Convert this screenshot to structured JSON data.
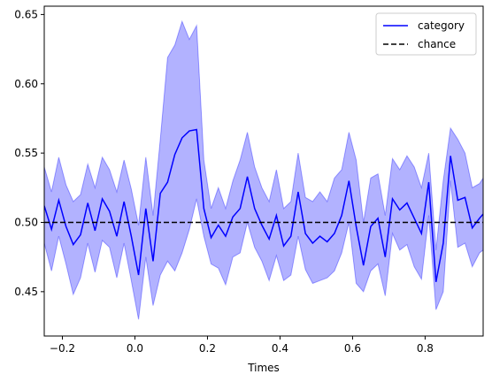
{
  "chart_data": {
    "type": "line",
    "title": "",
    "xlabel": "Times",
    "ylabel": "",
    "xlim": [
      -0.25,
      0.96
    ],
    "ylim": [
      0.418,
      0.656
    ],
    "x_ticks": [
      -0.2,
      0.0,
      0.2,
      0.4,
      0.6,
      0.8
    ],
    "x_tick_labels": [
      "−0.2",
      "0.0",
      "0.2",
      "0.4",
      "0.6",
      "0.8"
    ],
    "y_ticks": [
      0.45,
      0.5,
      0.55,
      0.6,
      0.65
    ],
    "y_tick_labels": [
      "0.45",
      "0.50",
      "0.55",
      "0.60",
      "0.65"
    ],
    "grid": false,
    "legend_position": "top-right",
    "series": [
      {
        "name": "category",
        "color": "#0000ff",
        "style": "solid",
        "x": [
          -0.25,
          -0.23,
          -0.21,
          -0.19,
          -0.17,
          -0.15,
          -0.13,
          -0.11,
          -0.09,
          -0.07,
          -0.05,
          -0.03,
          -0.01,
          0.01,
          0.03,
          0.05,
          0.07,
          0.09,
          0.11,
          0.13,
          0.15,
          0.17,
          0.19,
          0.21,
          0.23,
          0.25,
          0.27,
          0.29,
          0.31,
          0.33,
          0.35,
          0.37,
          0.39,
          0.41,
          0.43,
          0.45,
          0.47,
          0.49,
          0.51,
          0.53,
          0.55,
          0.57,
          0.59,
          0.61,
          0.63,
          0.65,
          0.67,
          0.69,
          0.71,
          0.73,
          0.75,
          0.77,
          0.79,
          0.81,
          0.83,
          0.85,
          0.87,
          0.89,
          0.91,
          0.93,
          0.95,
          0.96
        ],
        "values": [
          0.512,
          0.495,
          0.516,
          0.497,
          0.484,
          0.491,
          0.514,
          0.494,
          0.517,
          0.508,
          0.49,
          0.515,
          0.49,
          0.462,
          0.51,
          0.472,
          0.521,
          0.529,
          0.549,
          0.561,
          0.566,
          0.567,
          0.51,
          0.489,
          0.498,
          0.49,
          0.504,
          0.51,
          0.533,
          0.51,
          0.498,
          0.488,
          0.505,
          0.483,
          0.49,
          0.522,
          0.492,
          0.485,
          0.49,
          0.486,
          0.492,
          0.505,
          0.53,
          0.497,
          0.469,
          0.497,
          0.503,
          0.475,
          0.517,
          0.509,
          0.514,
          0.503,
          0.492,
          0.529,
          0.457,
          0.485,
          0.548,
          0.516,
          0.518,
          0.496,
          0.503,
          0.506
        ]
      },
      {
        "name": "chance",
        "color": "#000000",
        "style": "dashed",
        "x": [
          -0.25,
          0.96
        ],
        "values": [
          0.5,
          0.5
        ]
      }
    ],
    "band": {
      "series": "category",
      "color": "#0000ff",
      "opacity": 0.3,
      "upper": [
        0.54,
        0.522,
        0.547,
        0.527,
        0.515,
        0.52,
        0.542,
        0.525,
        0.547,
        0.538,
        0.522,
        0.545,
        0.524,
        0.498,
        0.547,
        0.505,
        0.56,
        0.619,
        0.628,
        0.645,
        0.632,
        0.642,
        0.545,
        0.51,
        0.525,
        0.51,
        0.53,
        0.545,
        0.565,
        0.54,
        0.525,
        0.515,
        0.538,
        0.51,
        0.515,
        0.55,
        0.518,
        0.515,
        0.522,
        0.515,
        0.532,
        0.538,
        0.565,
        0.545,
        0.5,
        0.532,
        0.535,
        0.505,
        0.546,
        0.538,
        0.548,
        0.54,
        0.525,
        0.55,
        0.48,
        0.53,
        0.568,
        0.56,
        0.55,
        0.525,
        0.528,
        0.532
      ],
      "lower": [
        0.485,
        0.465,
        0.49,
        0.47,
        0.448,
        0.46,
        0.485,
        0.464,
        0.487,
        0.482,
        0.46,
        0.485,
        0.458,
        0.43,
        0.475,
        0.44,
        0.462,
        0.472,
        0.465,
        0.478,
        0.495,
        0.517,
        0.49,
        0.47,
        0.467,
        0.455,
        0.475,
        0.478,
        0.5,
        0.482,
        0.472,
        0.458,
        0.476,
        0.458,
        0.462,
        0.49,
        0.466,
        0.456,
        0.458,
        0.46,
        0.465,
        0.478,
        0.5,
        0.456,
        0.45,
        0.465,
        0.47,
        0.447,
        0.492,
        0.48,
        0.484,
        0.468,
        0.459,
        0.505,
        0.437,
        0.45,
        0.53,
        0.482,
        0.485,
        0.468,
        0.478,
        0.48
      ]
    }
  }
}
